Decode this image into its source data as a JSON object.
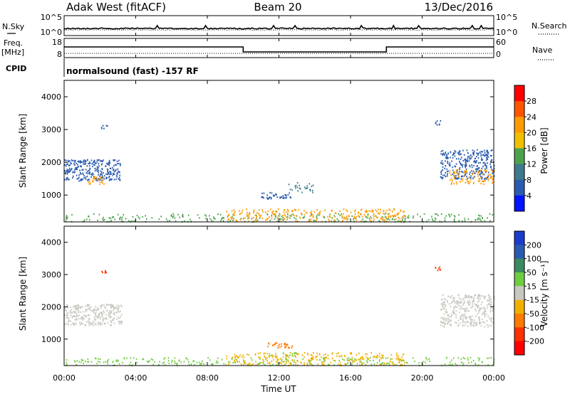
{
  "header": {
    "station": "Adak West (fitACF)",
    "beam": "Beam 20",
    "date": "13/Dec/2016"
  },
  "noise_panel": {
    "left_label": "N.Sky",
    "right_label": "N.Search",
    "yticks_left": [
      "10^5",
      "10^0"
    ],
    "yticks_right": [
      "10^5",
      "10^0"
    ]
  },
  "freq_panel": {
    "left_label": "Freq.",
    "left_unit": "[MHz]",
    "right_label": "Nave",
    "yticks_left": [
      "18",
      "8"
    ],
    "yticks_right": [
      "60",
      "0"
    ],
    "freq_steps": [
      {
        "start_hour": 0,
        "end_hour": 10,
        "level": "high"
      },
      {
        "start_hour": 10,
        "end_hour": 18,
        "level": "low"
      },
      {
        "start_hour": 18,
        "end_hour": 24,
        "level": "high"
      }
    ]
  },
  "cpid": {
    "label": "CPID",
    "text": "normalsound (fast) -157 RF"
  },
  "chart_data": [
    {
      "type": "heatmap",
      "name": "power",
      "ylabel": "Slant Range [km]",
      "yticks": [
        "4000",
        "3000",
        "2000",
        "1000"
      ],
      "ylim": [
        180,
        4500
      ],
      "colorbar_label": "Power [dB]",
      "colorbar_ticks": [
        "28",
        "24",
        "20",
        "16",
        "12",
        "8",
        "4"
      ],
      "colorbar_colors": [
        "#ff0000",
        "#ff5500",
        "#ff9a00",
        "#f0c000",
        "#4ca24c",
        "#3c7a8c",
        "#2a5bb0",
        "#0014ff"
      ],
      "scatter_regions": [
        {
          "t0": 0.0,
          "t1": 3.2,
          "r0": 1450,
          "r1": 2100,
          "color": "#2a5bb0",
          "density": 0.7
        },
        {
          "t0": 1.3,
          "t1": 2.2,
          "r0": 1350,
          "r1": 1600,
          "color": "#ff9a00",
          "density": 0.6
        },
        {
          "t0": 2.0,
          "t1": 2.4,
          "r0": 3050,
          "r1": 3150,
          "color": "#2a5bb0",
          "density": 0.8
        },
        {
          "t0": 11.0,
          "t1": 12.8,
          "r0": 900,
          "r1": 1100,
          "color": "#2a5bb0",
          "density": 0.6
        },
        {
          "t0": 12.5,
          "t1": 14.0,
          "r0": 1100,
          "r1": 1400,
          "color": "#3c7a8c",
          "density": 0.3
        },
        {
          "t0": 21.0,
          "t1": 24.0,
          "r0": 1500,
          "r1": 2400,
          "color": "#2a5bb0",
          "density": 0.6
        },
        {
          "t0": 21.5,
          "t1": 24.0,
          "r0": 1350,
          "r1": 1800,
          "color": "#ff9a00",
          "density": 0.4
        },
        {
          "t0": 20.7,
          "t1": 21.0,
          "r0": 3150,
          "r1": 3300,
          "color": "#2a5bb0",
          "density": 0.8
        },
        {
          "t0": 0.0,
          "t1": 24.0,
          "r0": 200,
          "r1": 450,
          "color": "#4ca24c",
          "density": 0.25
        },
        {
          "t0": 9.0,
          "t1": 19.0,
          "r0": 200,
          "r1": 600,
          "color": "#ff9a00",
          "density": 0.35
        }
      ]
    },
    {
      "type": "heatmap",
      "name": "velocity",
      "ylabel": "Slant Range [km]",
      "yticks": [
        "4000",
        "3000",
        "2000",
        "1000"
      ],
      "ylim": [
        180,
        4500
      ],
      "xlabel": "Time UT",
      "xticks": [
        "00:00",
        "04:00",
        "08:00",
        "12:00",
        "16:00",
        "20:00",
        "00:00"
      ],
      "colorbar_label": "Velocity [m s⁻¹]",
      "colorbar_ticks": [
        "200",
        "100",
        "50",
        "15",
        "-15",
        "-50",
        "-100",
        "-200"
      ],
      "colorbar_colors": [
        "#1a3ccc",
        "#2a5bb0",
        "#3c8a60",
        "#70cc40",
        "#c8c8c0",
        "#f0b000",
        "#ff7a00",
        "#ff3000",
        "#ff0000"
      ],
      "scatter_regions": [
        {
          "t0": 0.0,
          "t1": 3.2,
          "r0": 1450,
          "r1": 2100,
          "color": "#c8c8c0",
          "density": 0.7
        },
        {
          "t0": 2.0,
          "t1": 2.4,
          "r0": 3050,
          "r1": 3150,
          "color": "#ff3000",
          "density": 0.8
        },
        {
          "t0": 11.3,
          "t1": 12.8,
          "r0": 750,
          "r1": 900,
          "color": "#ff7a00",
          "density": 0.7
        },
        {
          "t0": 11.5,
          "t1": 13.0,
          "r0": 480,
          "r1": 600,
          "color": "#70cc40",
          "density": 0.5
        },
        {
          "t0": 21.0,
          "t1": 24.0,
          "r0": 1400,
          "r1": 2400,
          "color": "#c8c8c0",
          "density": 0.6
        },
        {
          "t0": 20.7,
          "t1": 21.0,
          "r0": 3150,
          "r1": 3300,
          "color": "#ff3000",
          "density": 0.8
        },
        {
          "t0": 0.0,
          "t1": 24.0,
          "r0": 200,
          "r1": 450,
          "color": "#70cc40",
          "density": 0.25
        },
        {
          "t0": 9.0,
          "t1": 19.0,
          "r0": 200,
          "r1": 600,
          "color": "#f0b000",
          "density": 0.35
        }
      ]
    }
  ]
}
